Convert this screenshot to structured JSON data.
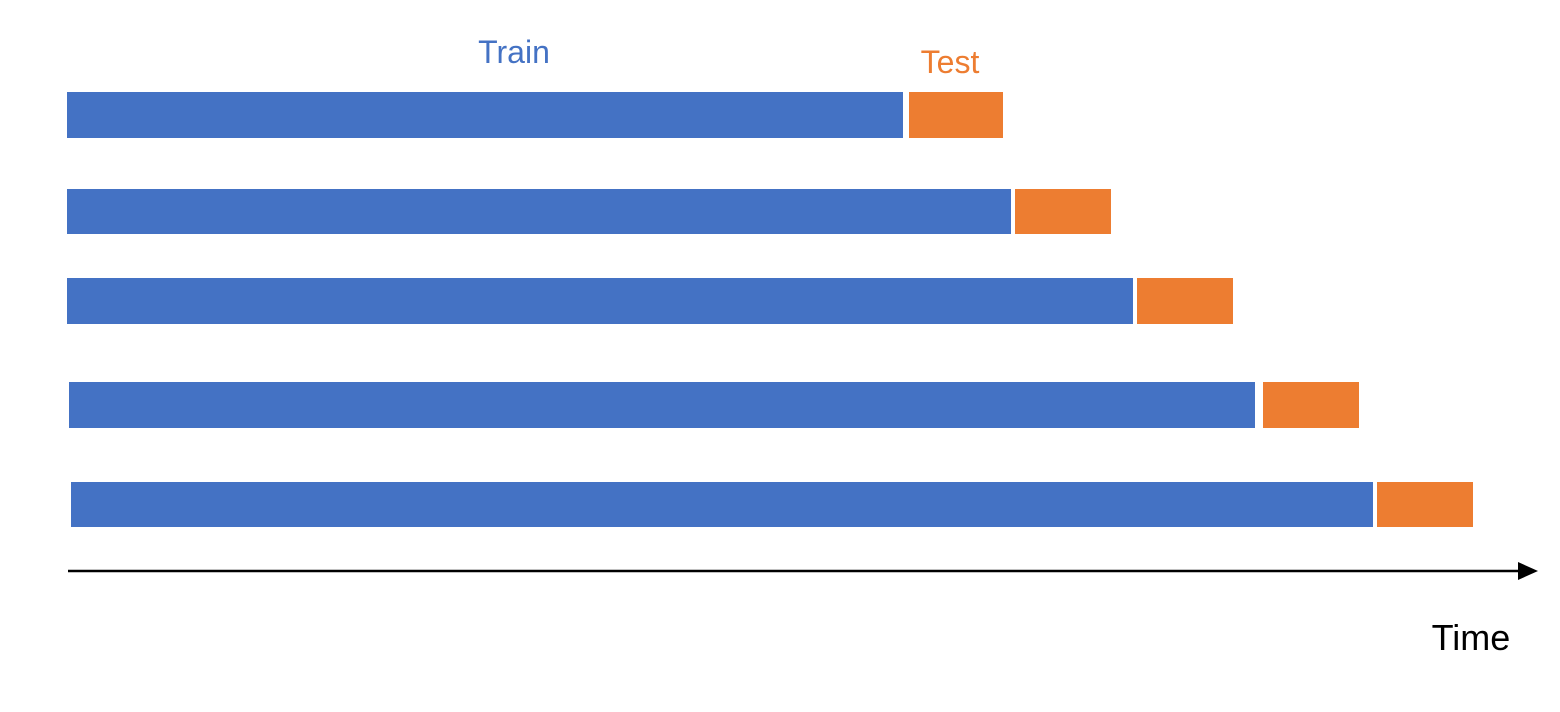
{
  "labels": {
    "train": "Train",
    "test": "Test",
    "time": "Time"
  },
  "colors": {
    "train": "#4472C4",
    "test": "#ED7D31",
    "axis": "#000000",
    "time_text": "#000000"
  },
  "splits": [
    {
      "fold": 1
    },
    {
      "fold": 2
    },
    {
      "fold": 3
    },
    {
      "fold": 4
    },
    {
      "fold": 5
    }
  ]
}
